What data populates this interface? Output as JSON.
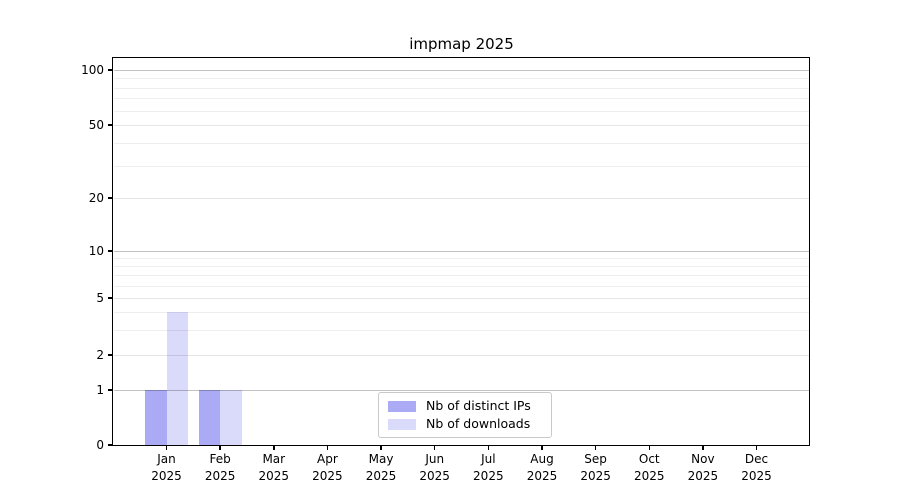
{
  "chart_data": {
    "type": "bar",
    "title": "impmap 2025",
    "categories": [
      "Jan",
      "Feb",
      "Mar",
      "Apr",
      "May",
      "Jun",
      "Jul",
      "Aug",
      "Sep",
      "Oct",
      "Nov",
      "Dec"
    ],
    "category_year": "2025",
    "series": [
      {
        "name": "Nb of distinct IPs",
        "color": "#aaaaf5",
        "values": [
          1,
          1,
          0,
          0,
          0,
          0,
          0,
          0,
          0,
          0,
          0,
          0
        ]
      },
      {
        "name": "Nb of downloads",
        "color": "#dadafa",
        "values": [
          4,
          1,
          0,
          0,
          0,
          0,
          0,
          0,
          0,
          0,
          0,
          0
        ]
      }
    ],
    "xlabel": "",
    "ylabel": "",
    "yscale": "symlog",
    "ylim": [
      0,
      130
    ],
    "y_ticks": [
      0,
      1,
      2,
      5,
      10,
      20,
      50,
      100
    ],
    "y_major_gridline_values": [
      1,
      10,
      100
    ],
    "y_mid_gridline_values": [
      2,
      5,
      20,
      50
    ],
    "y_minor_gridline_values": [
      3,
      4,
      6,
      7,
      8,
      9,
      30,
      40,
      60,
      70,
      80,
      90
    ],
    "grid": "horizontal",
    "legend_position": "bottom-center"
  }
}
